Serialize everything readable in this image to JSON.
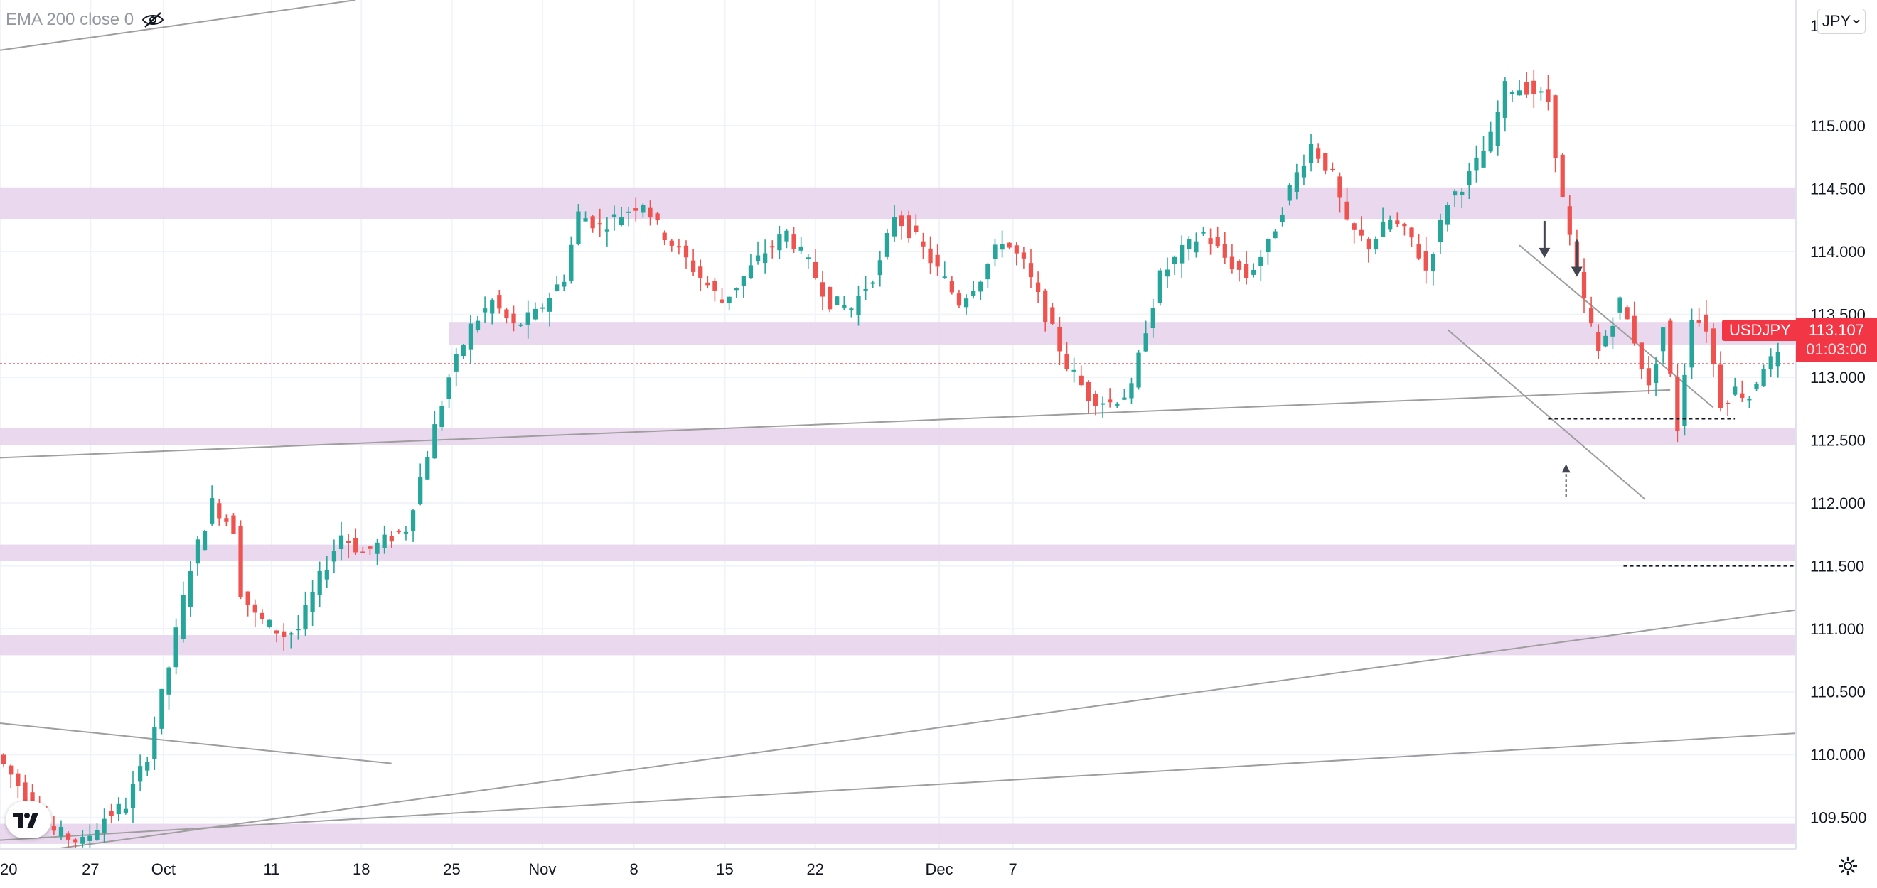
{
  "legend": {
    "label": "EMA 200 close 0",
    "visibility_icon": "eye-off-icon"
  },
  "currency_button": {
    "label": "JPY",
    "icon": "chevron-down-icon"
  },
  "symbol_tag": "USDJPY",
  "price_tag": {
    "price": "113.107",
    "countdown": "01:03:00"
  },
  "partial_top_label": "1",
  "colors": {
    "up": "#26a69a",
    "down": "#ef5350",
    "zone": "#e8d4ec",
    "line": "#9e9e9e",
    "price_line": "#f23645",
    "label_bg": "#f23645"
  },
  "chart_data": {
    "type": "candlestick",
    "symbol": "USDJPY",
    "ylim": [
      109.25,
      116.0
    ],
    "y_ticks": [
      115.0,
      114.5,
      114.0,
      113.5,
      113.0,
      112.5,
      112.0,
      111.5,
      111.0,
      110.5,
      110.0,
      109.5
    ],
    "y_tick_labels": [
      "115.000",
      "114.500",
      "114.000",
      "113.500",
      "113.000",
      "112.500",
      "112.000",
      "111.500",
      "111.000",
      "110.500",
      "110.000",
      "109.500"
    ],
    "x_tick_labels": [
      "20",
      "27",
      "Oct",
      "11",
      "18",
      "25",
      "Nov",
      "8",
      "15",
      "22",
      "Dec",
      "7"
    ],
    "grid": true,
    "last_price": 113.107,
    "price_path": [
      [
        0,
        110.0
      ],
      [
        10,
        109.6
      ],
      [
        15,
        109.4
      ],
      [
        24,
        109.3
      ],
      [
        30,
        109.5
      ],
      [
        36,
        109.6
      ],
      [
        42,
        110.0
      ],
      [
        48,
        110.7
      ],
      [
        54,
        111.5
      ],
      [
        60,
        112.0
      ],
      [
        66,
        111.8
      ],
      [
        68,
        111.3
      ],
      [
        72,
        111.1
      ],
      [
        80,
        110.95
      ],
      [
        84,
        111.0
      ],
      [
        90,
        111.4
      ],
      [
        96,
        111.75
      ],
      [
        102,
        111.6
      ],
      [
        108,
        111.7
      ],
      [
        114,
        111.8
      ],
      [
        120,
        112.4
      ],
      [
        126,
        113.0
      ],
      [
        132,
        113.4
      ],
      [
        138,
        113.6
      ],
      [
        144,
        113.4
      ],
      [
        150,
        113.5
      ],
      [
        158,
        113.8
      ],
      [
        162,
        114.3
      ],
      [
        168,
        114.2
      ],
      [
        174,
        114.3
      ],
      [
        180,
        114.4
      ],
      [
        184,
        114.2
      ],
      [
        190,
        114.0
      ],
      [
        196,
        113.8
      ],
      [
        202,
        113.6
      ],
      [
        208,
        113.8
      ],
      [
        214,
        114.0
      ],
      [
        220,
        114.15
      ],
      [
        226,
        113.9
      ],
      [
        232,
        113.6
      ],
      [
        238,
        113.55
      ],
      [
        246,
        113.9
      ],
      [
        250,
        114.3
      ],
      [
        256,
        114.1
      ],
      [
        262,
        113.85
      ],
      [
        268,
        113.6
      ],
      [
        274,
        113.8
      ],
      [
        280,
        114.1
      ],
      [
        286,
        113.9
      ],
      [
        292,
        113.5
      ],
      [
        298,
        113.1
      ],
      [
        304,
        112.85
      ],
      [
        310,
        112.8
      ],
      [
        316,
        112.9
      ],
      [
        320,
        113.4
      ],
      [
        324,
        113.8
      ],
      [
        330,
        114.0
      ],
      [
        336,
        114.15
      ],
      [
        342,
        113.95
      ],
      [
        348,
        113.8
      ],
      [
        354,
        114.05
      ],
      [
        360,
        114.5
      ],
      [
        366,
        114.85
      ],
      [
        372,
        114.6
      ],
      [
        376,
        114.2
      ],
      [
        382,
        114.05
      ],
      [
        388,
        114.25
      ],
      [
        394,
        114.1
      ],
      [
        398,
        113.85
      ],
      [
        404,
        114.4
      ],
      [
        410,
        114.6
      ],
      [
        416,
        114.9
      ],
      [
        420,
        115.3
      ],
      [
        426,
        115.3
      ],
      [
        432,
        115.2
      ],
      [
        436,
        114.4
      ],
      [
        440,
        113.8
      ],
      [
        446,
        113.2
      ],
      [
        452,
        113.6
      ],
      [
        456,
        113.3
      ],
      [
        460,
        112.9
      ],
      [
        464,
        113.4
      ],
      [
        468,
        112.6
      ],
      [
        472,
        113.5
      ],
      [
        476,
        113.4
      ],
      [
        480,
        112.8
      ],
      [
        484,
        112.9
      ],
      [
        488,
        112.85
      ],
      [
        492,
        113.1
      ],
      [
        496,
        113.15
      ],
      [
        500,
        113.107
      ]
    ]
  },
  "horizontal_zones": [
    {
      "from": 114.26,
      "to": 114.51,
      "x_start": 0
    },
    {
      "from": 113.26,
      "to": 113.44,
      "x_start": 125
    },
    {
      "from": 112.46,
      "to": 112.6,
      "x_start": 0
    },
    {
      "from": 111.54,
      "to": 111.67,
      "x_start": 0
    },
    {
      "from": 110.79,
      "to": 110.95,
      "x_start": 0
    },
    {
      "from": 109.29,
      "to": 109.45,
      "x_start": 0
    }
  ],
  "trend_lines": [
    {
      "x1": 0,
      "y1": 115.6,
      "x2": 99,
      "y2": 116.0
    },
    {
      "x1": 0,
      "y1": 112.36,
      "x2": 465,
      "y2": 112.9
    },
    {
      "x1": 0,
      "y1": 110.25,
      "x2": 109,
      "y2": 109.93
    },
    {
      "x1": 0,
      "y1": 109.19,
      "x2": 500,
      "y2": 111.15
    },
    {
      "x1": 0,
      "y1": 109.32,
      "x2": 500,
      "y2": 110.17
    },
    {
      "x1": 403,
      "y1": 113.38,
      "x2": 458,
      "y2": 112.03
    },
    {
      "x1": 423,
      "y1": 114.05,
      "x2": 477,
      "y2": 112.76
    }
  ],
  "dashed_levels": [
    {
      "price": 112.67,
      "x1": 431,
      "x2": 483
    },
    {
      "price": 111.5,
      "x1": 452,
      "x2": 500
    }
  ],
  "annotations": [
    {
      "kind": "arrow-down",
      "x": 430,
      "price": 113.95
    },
    {
      "kind": "arrow-down",
      "x": 439,
      "price": 113.8
    },
    {
      "kind": "arrow-up-dashed",
      "x": 436,
      "price": 112.05
    }
  ]
}
